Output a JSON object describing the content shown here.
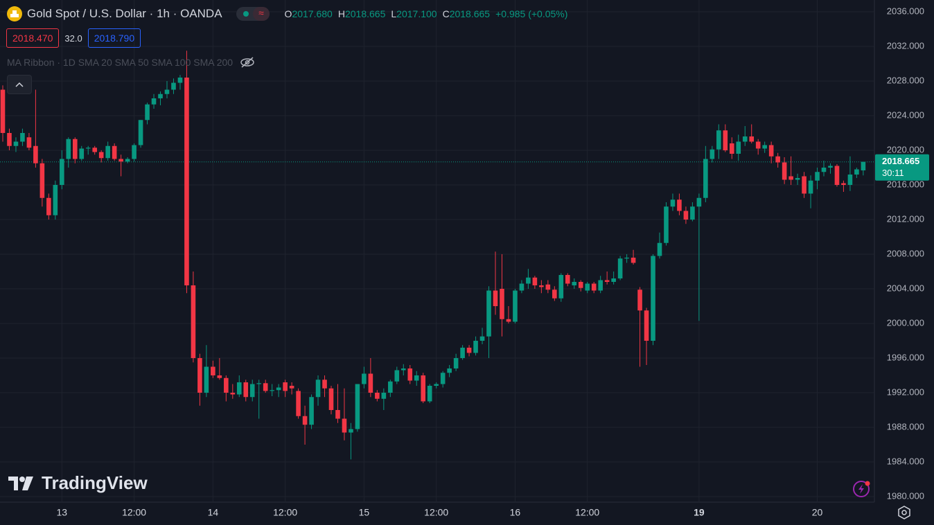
{
  "chart_data": {
    "type": "candlestick",
    "title": "Gold Spot / U.S. Dollar · 1h · OANDA",
    "ohlc": [
      {
        "key": "O",
        "text": "2017.680"
      },
      {
        "key": "H",
        "text": "2018.665"
      },
      {
        "key": "L",
        "text": "2017.100"
      },
      {
        "key": "C",
        "text": "2018.665"
      }
    ],
    "change": "+0.985 (+0.05%)",
    "bid": "2018.470",
    "spread": "32.0",
    "ask": "2018.790",
    "indicator": "MA Ribbon · 1D SMA 20 SMA 50 SMA 100 SMA 200",
    "last_price_label": "2018.665",
    "countdown": "30:11",
    "watermark": "TradingView",
    "up_color": "#089981",
    "down_color": "#f23645",
    "grid": true,
    "ylim": [
      1979.36,
      2037.36
    ],
    "yticks": [
      {
        "value": 1980,
        "label": "1980.000"
      },
      {
        "value": 1984,
        "label": "1984.000"
      },
      {
        "value": 1988,
        "label": "1988.000"
      },
      {
        "value": 1992,
        "label": "1992.000"
      },
      {
        "value": 1996,
        "label": "1996.000"
      },
      {
        "value": 2000,
        "label": "2000.000"
      },
      {
        "value": 2004,
        "label": "2004.000"
      },
      {
        "value": 2008,
        "label": "2008.000"
      },
      {
        "value": 2012,
        "label": "2012.000"
      },
      {
        "value": 2016,
        "label": "2016.000"
      },
      {
        "value": 2020,
        "label": "2020.000"
      },
      {
        "value": 2024,
        "label": "2024.000"
      },
      {
        "value": 2028,
        "label": "2028.000"
      },
      {
        "value": 2032,
        "label": "2032.000"
      },
      {
        "value": 2036,
        "label": "2036.000"
      }
    ],
    "categories": [
      null,
      null,
      null,
      null,
      null,
      null,
      null,
      null,
      null,
      "13",
      null,
      null,
      null,
      null,
      null,
      null,
      null,
      null,
      null,
      null,
      "12:00",
      null,
      null,
      null,
      null,
      null,
      null,
      null,
      null,
      null,
      null,
      null,
      "14",
      null,
      null,
      null,
      null,
      null,
      null,
      null,
      null,
      null,
      null,
      "12:00",
      null,
      null,
      null,
      null,
      null,
      null,
      null,
      null,
      null,
      null,
      null,
      "15",
      null,
      null,
      null,
      null,
      null,
      null,
      null,
      null,
      null,
      null,
      "12:00",
      null,
      null,
      null,
      null,
      null,
      null,
      null,
      null,
      null,
      null,
      null,
      "16",
      null,
      null,
      null,
      null,
      null,
      null,
      null,
      null,
      null,
      null,
      "12:00",
      null,
      null,
      null,
      null,
      null,
      null,
      null,
      null,
      null,
      null,
      null,
      null,
      null,
      null,
      null,
      null,
      "19",
      null,
      null,
      null,
      null,
      null,
      null,
      null,
      null,
      null,
      null,
      null,
      null,
      null,
      null,
      null,
      null,
      null,
      "20",
      null,
      null,
      null,
      null,
      null,
      null,
      null
    ],
    "open": [
      2027,
      2022,
      2020.5,
      2021,
      2021.5,
      2020.5,
      2018.5,
      2014.5,
      2012.5,
      2016,
      2019,
      2021.3,
      2019,
      2020.2,
      2020.3,
      2019.8,
      2019.1,
      2020.5,
      2019,
      2018.7,
      2019,
      2020.6,
      2023.5,
      2025.3,
      2026,
      2026.5,
      2027,
      2027.8,
      2028.4,
      2004.4,
      1996,
      1992,
      1995,
      1994,
      1993.7,
      1992,
      1991.8,
      1993.2,
      1991.5,
      1993,
      1993.1,
      1992.2,
      1992.3,
      1993.2,
      1992.8,
      1992.2,
      1989.3,
      1988.3,
      1991.5,
      1993.5,
      1992.5,
      1990,
      1989,
      1987.4,
      1987.8,
      1993,
      1994.2,
      1992,
      1991.3,
      1992,
      1993.3,
      1994.6,
      1994.8,
      1993.4,
      1994,
      1991,
      1992.8,
      1993,
      1994.3,
      1994.8,
      1996,
      1997.2,
      1996.6,
      1998,
      1998.5,
      2003.8,
      2004,
      2000.5,
      2000.2,
      2003.8,
      2004.6,
      2005.3,
      2004.4,
      2004.5,
      2003.9,
      2002.9,
      2005.6,
      2004.4,
      2004.8,
      2003.8,
      2004.6,
      2003.8,
      2005,
      2004.8,
      2005.2,
      2007.5,
      2007.6,
      2003.9,
      2001.5,
      1998,
      2007.8,
      2009.3,
      2013.5,
      2014.3,
      2013,
      2012,
      2013.5,
      2014.5,
      2019,
      2020.1,
      2022.3,
      2020.8,
      2019.6,
      2021,
      2021.6,
      2021,
      2020.2,
      2020.6,
      2019.3,
      2018.6,
      2017,
      2016.6,
      2017,
      2015,
      2016.5,
      2017.5,
      2018,
      2018.2,
      2016.2,
      2016,
      2017.2,
      2017.68
    ],
    "high": [
      2027.5,
      2022.5,
      2021.5,
      2022.5,
      2022,
      2027,
      2019,
      2015,
      2016.5,
      2020,
      2021.5,
      2021.5,
      2020.5,
      2020.5,
      2020.5,
      2020,
      2021,
      2020.8,
      2019.5,
      2019.2,
      2020.8,
      2023.5,
      2025.5,
      2026.5,
      2026.8,
      2028,
      2028.3,
      2028.7,
      2031.5,
      2006,
      1996.5,
      1997.5,
      1995.7,
      1996,
      1994,
      1993,
      1994,
      1993.5,
      1993.5,
      1993.5,
      1993.5,
      1993,
      1993,
      1993.5,
      1993.2,
      1992.5,
      1990.5,
      1991.8,
      1994,
      1994,
      1992.8,
      1993,
      1992.5,
      1988.5,
      1993,
      1995,
      1996,
      1992.3,
      1992.5,
      1993.5,
      1995,
      1995.3,
      1995.2,
      1994.5,
      1994.3,
      1993,
      1993.2,
      1994.5,
      1995.2,
      1996.5,
      1997.5,
      1997.5,
      1998.5,
      1999.5,
      2004.3,
      2008.3,
      2008,
      2002,
      2004,
      2005,
      2006.3,
      2005.5,
      2005,
      2005,
      2004.3,
      2005.8,
      2005.8,
      2005.2,
      2005,
      2004.8,
      2004.8,
      2005.5,
      2006,
      2006,
      2007.8,
      2008,
      2008.5,
      2004.2,
      2001.8,
      2008,
      2010.5,
      2014,
      2015,
      2015,
      2013.5,
      2014,
      2015,
      2020.5,
      2020.5,
      2023,
      2023,
      2021.5,
      2021.8,
      2022.8,
      2023,
      2021.3,
      2021,
      2021,
      2019.7,
      2019.2,
      2019.3,
      2017.3,
      2017.5,
      2017.1,
      2018,
      2018.8,
      2018.5,
      2018.4,
      2016.5,
      2019.3,
      2018,
      2018.665
    ],
    "low": [
      2021,
      2020,
      2019.8,
      2020.5,
      2020,
      2018,
      2013.5,
      2012,
      2012,
      2015.5,
      2018,
      2018.5,
      2018.8,
      2019.5,
      2019.5,
      2018.6,
      2018.8,
      2018.8,
      2017,
      2018.5,
      2018.7,
      2020.3,
      2023,
      2024.8,
      2025.2,
      2026,
      2026.5,
      2027,
      2003.5,
      1995.5,
      1990.5,
      1991.5,
      1993.7,
      1993.5,
      1991,
      1991.3,
      1991.5,
      1991,
      1991,
      1989,
      1992,
      1991.6,
      1991.5,
      1991.5,
      1991.8,
      1989,
      1986,
      1987.8,
      1990.5,
      1991.5,
      1989.5,
      1988.5,
      1986.5,
      1984.3,
      1987.5,
      1992.5,
      1991.5,
      1991,
      1990,
      1991.5,
      1993,
      1994,
      1993,
      1992.8,
      1990.8,
      1990.8,
      1992.5,
      1992.6,
      1993.8,
      1994.5,
      1995.8,
      1996.2,
      1996.3,
      1997.6,
      1996,
      2001,
      1998.5,
      2000,
      2000,
      2003.5,
      2004,
      2004,
      2003.5,
      2003.5,
      2002.6,
      2002.5,
      2004.3,
      2004,
      2003.7,
      2003.5,
      2003.5,
      2003.5,
      2004.5,
      2004.5,
      2005,
      2007,
      2006.8,
      1995,
      1995.2,
      1997.5,
      2007.5,
      2009,
      2013,
      2012.5,
      2011.5,
      2011.8,
      2000.3,
      2014,
      2018.6,
      2019,
      2019.8,
      2019,
      2018.8,
      2020.5,
      2020.8,
      2019.5,
      2019.7,
      2018.5,
      2018,
      2016.1,
      2016,
      2016,
      2014.5,
      2013.3,
      2015.5,
      2017,
      2017.3,
      2015.8,
      2015.2,
      2015.3,
      2016.8,
      2017.1
    ],
    "close": [
      2022,
      2020.5,
      2021,
      2022,
      2020.3,
      2018.5,
      2014.5,
      2012.5,
      2016,
      2019,
      2021.3,
      2019,
      2020.2,
      2020.3,
      2019.8,
      2019.1,
      2020.5,
      2019,
      2018.7,
      2019,
      2020.6,
      2023.5,
      2025.3,
      2026,
      2026.5,
      2027,
      2027.8,
      2028.4,
      2004.4,
      1996,
      1992,
      1995,
      1994,
      1993.7,
      1992,
      1991.8,
      1993.2,
      1991.5,
      1993,
      1993.1,
      1992.2,
      1992.3,
      1992.6,
      1992.2,
      1992.5,
      1989.3,
      1988.3,
      1991.5,
      1993.5,
      1992.5,
      1990,
      1989,
      1987.4,
      1987.8,
      1993,
      1994.2,
      1992,
      1991.3,
      1992,
      1993.3,
      1994.6,
      1994.8,
      1993.4,
      1994,
      1991,
      1992.8,
      1993,
      1994.3,
      1994.8,
      1996,
      1997.2,
      1996.6,
      1998,
      1998.5,
      2003.8,
      2002,
      2000.5,
      2000.2,
      2003.8,
      2004.6,
      2005.3,
      2004.4,
      2004.2,
      2003.9,
      2002.9,
      2005.6,
      2004.6,
      2004.8,
      2004.1,
      2004.6,
      2003.8,
      2005,
      2004.8,
      2005.2,
      2007.5,
      2007.6,
      2007,
      2001.5,
      1998,
      2007.8,
      2009.3,
      2013.5,
      2014.3,
      2013,
      2012,
      2013.5,
      2014.5,
      2019,
      2020.1,
      2022.3,
      2020,
      2019.6,
      2021,
      2021.6,
      2021,
      2020.2,
      2020.6,
      2019.3,
      2018.6,
      2016.6,
      2016.6,
      2016.8,
      2015,
      2016.5,
      2017.5,
      2018,
      2018.2,
      2016,
      2016,
      2017.2,
      2017.8,
      2018.665
    ]
  }
}
